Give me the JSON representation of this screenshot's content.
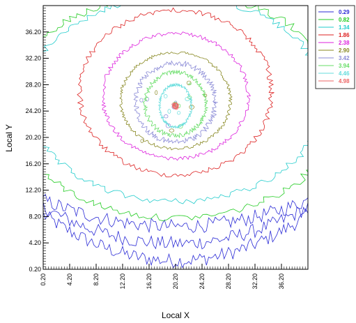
{
  "chart_data": {
    "type": "contour",
    "xlabel": "Local X",
    "ylabel": "Local Y",
    "xlim": [
      0.2,
      40.2
    ],
    "ylim": [
      0.2,
      40.2
    ],
    "x_ticks": [
      "0.20",
      "4.20",
      "8.20",
      "12.20",
      "16.20",
      "20.20",
      "24.20",
      "28.20",
      "32.20",
      "36.20"
    ],
    "y_ticks": [
      "0.20",
      "4.20",
      "8.20",
      "12.20",
      "16.20",
      "20.20",
      "24.20",
      "28.20",
      "32.20",
      "36.20"
    ],
    "legend_position": "top-right",
    "levels": [
      {
        "label": "0.29",
        "value": 0.29,
        "color": "#2b2bd6"
      },
      {
        "label": "0.82",
        "value": 0.82,
        "color": "#22cc22"
      },
      {
        "label": "1.34",
        "value": 1.34,
        "color": "#22cccc"
      },
      {
        "label": "1.86",
        "value": 1.86,
        "color": "#dd2222"
      },
      {
        "label": "2.38",
        "value": 2.38,
        "color": "#dd22dd"
      },
      {
        "label": "2.90",
        "value": 2.9,
        "color": "#888822"
      },
      {
        "label": "3.42",
        "value": 3.42,
        "color": "#8a8ad6"
      },
      {
        "label": "3.94",
        "value": 3.94,
        "color": "#66dd66"
      },
      {
        "label": "4.46",
        "value": 4.46,
        "color": "#66dddd"
      },
      {
        "label": "4.98",
        "value": 4.98,
        "color": "#ee6666"
      }
    ],
    "peak": {
      "x": 20.2,
      "y": 25.0
    }
  }
}
